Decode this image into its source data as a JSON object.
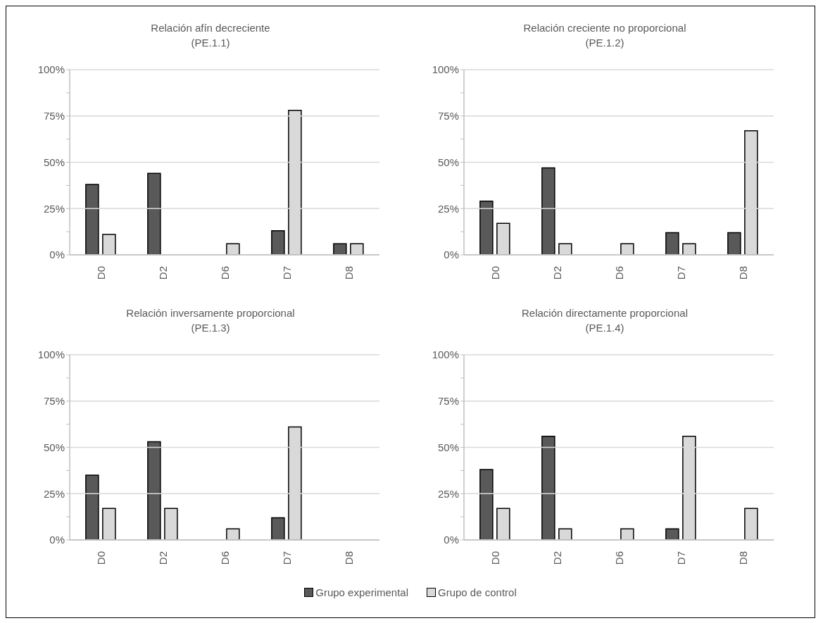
{
  "chart_data": [
    {
      "type": "bar",
      "title": "Relación afín decreciente\n(PE.1.1)",
      "categories": [
        "D0",
        "D2",
        "D6",
        "D7",
        "D8"
      ],
      "series": [
        {
          "name": "Grupo experimental",
          "color": "#595959",
          "values": [
            38,
            44,
            0,
            13,
            6
          ]
        },
        {
          "name": "Grupo de control",
          "color": "#d9d9d9",
          "values": [
            11,
            0,
            6,
            78,
            6
          ]
        }
      ],
      "ylim": [
        0,
        100
      ],
      "yticks": [
        {
          "value": 0,
          "label": "0%"
        },
        {
          "value": 12.5,
          "label": null
        },
        {
          "value": 25,
          "label": "25%"
        },
        {
          "value": 37.5,
          "label": null
        },
        {
          "value": 50,
          "label": "50%"
        },
        {
          "value": 62.5,
          "label": null
        },
        {
          "value": 75,
          "label": "75%"
        },
        {
          "value": 87.5,
          "label": null
        },
        {
          "value": 100,
          "label": "100%"
        }
      ],
      "grid": "y",
      "legend": "bottom"
    },
    {
      "type": "bar",
      "title": "Relación creciente no proporcional\n(PE.1.2)",
      "categories": [
        "D0",
        "D2",
        "D6",
        "D7",
        "D8"
      ],
      "series": [
        {
          "color": "#595959",
          "values": [
            29,
            47,
            0,
            12,
            12
          ]
        },
        {
          "color": "#d9d9d9",
          "values": [
            17,
            6,
            6,
            6,
            67
          ]
        }
      ],
      "ylim": [
        0,
        100
      ],
      "yticks": [
        {
          "value": 0,
          "label": "0%"
        },
        {
          "value": 12.5,
          "label": null
        },
        {
          "value": 25,
          "label": "25%"
        },
        {
          "value": 37.5,
          "label": null
        },
        {
          "value": 50,
          "label": "50%"
        },
        {
          "value": 62.5,
          "label": null
        },
        {
          "value": 75,
          "label": "75%"
        },
        {
          "value": 87.5,
          "label": null
        },
        {
          "value": 100,
          "label": "100%"
        }
      ],
      "grid": "y"
    },
    {
      "type": "bar",
      "title": "Relación inversamente proporcional\n(PE.1.3)",
      "categories": [
        "D0",
        "D2",
        "D6",
        "D7",
        "D8"
      ],
      "series": [
        {
          "color": "#595959",
          "values": [
            35,
            53,
            0,
            12,
            0
          ]
        },
        {
          "color": "#d9d9d9",
          "values": [
            17,
            17,
            6,
            61,
            0
          ]
        }
      ],
      "ylim": [
        0,
        100
      ],
      "yticks": [
        {
          "value": 0,
          "label": "0%"
        },
        {
          "value": 12.5,
          "label": null
        },
        {
          "value": 25,
          "label": "25%"
        },
        {
          "value": 37.5,
          "label": null
        },
        {
          "value": 50,
          "label": "50%"
        },
        {
          "value": 62.5,
          "label": null
        },
        {
          "value": 75,
          "label": "75%"
        },
        {
          "value": 87.5,
          "label": null
        },
        {
          "value": 100,
          "label": "100%"
        }
      ],
      "grid": "y"
    },
    {
      "type": "bar",
      "title": "Relación directamente proporcional\n(PE.1.4)",
      "categories": [
        "D0",
        "D2",
        "D6",
        "D7",
        "D8"
      ],
      "series": [
        {
          "color": "#595959",
          "values": [
            38,
            56,
            0,
            6,
            0
          ]
        },
        {
          "color": "#d9d9d9",
          "values": [
            17,
            6,
            6,
            56,
            17
          ]
        }
      ],
      "ylim": [
        0,
        100
      ],
      "yticks": [
        {
          "value": 0,
          "label": "0%"
        },
        {
          "value": 12.5,
          "label": null
        },
        {
          "value": 25,
          "label": "25%"
        },
        {
          "value": 37.5,
          "label": null
        },
        {
          "value": 50,
          "label": "50%"
        },
        {
          "value": 62.5,
          "label": null
        },
        {
          "value": 75,
          "label": "75%"
        },
        {
          "value": 87.5,
          "label": null
        },
        {
          "value": 100,
          "label": "100%"
        }
      ],
      "grid": "y"
    }
  ]
}
